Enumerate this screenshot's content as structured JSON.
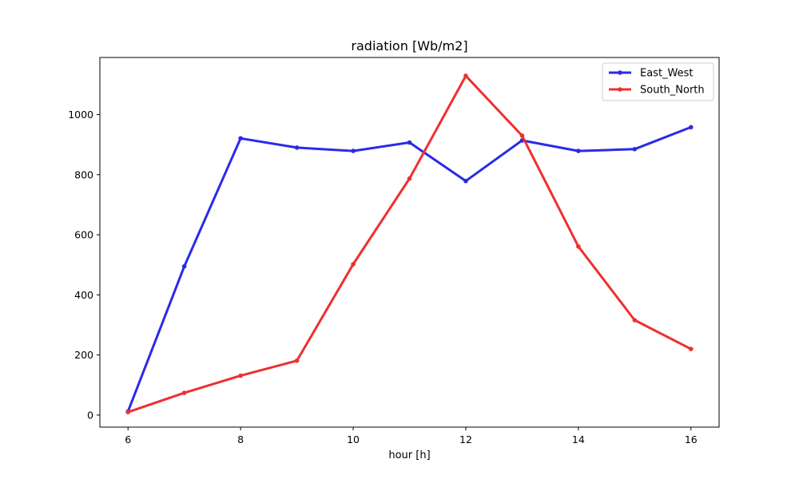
{
  "chart_data": {
    "type": "line",
    "title": "radiation [Wb/m2]",
    "xlabel": "hour [h]",
    "ylabel": "",
    "x": [
      6,
      7,
      8,
      9,
      10,
      11,
      12,
      13,
      14,
      15,
      16
    ],
    "xlim": [
      5.5,
      16.5
    ],
    "ylim": [
      -40,
      1190
    ],
    "xticks": [
      6,
      8,
      10,
      12,
      14,
      16
    ],
    "yticks": [
      0,
      200,
      400,
      600,
      800,
      1000
    ],
    "grid": false,
    "legend_position": "top-right",
    "series": [
      {
        "name": "East_West",
        "color": "#2a2ae8",
        "values": [
          12,
          495,
          921,
          890,
          879,
          907,
          779,
          914,
          879,
          885,
          958
        ]
      },
      {
        "name": "South_North",
        "color": "#ef2f2f",
        "values": [
          10,
          74,
          131,
          181,
          502,
          787,
          1129,
          930,
          561,
          316,
          220
        ]
      }
    ]
  }
}
